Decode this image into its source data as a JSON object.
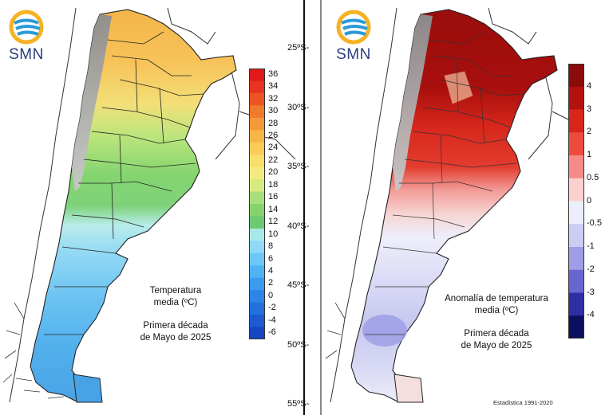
{
  "left_panel": {
    "logo_text": "SMN",
    "caption_line1": "Temperatura",
    "caption_line2": "media (ºC)",
    "caption_line3": "Primera década",
    "caption_line4": "de Mayo de 2025",
    "colorbar": {
      "labels": [
        "36",
        "34",
        "32",
        "30",
        "28",
        "26",
        "24",
        "22",
        "20",
        "18",
        "16",
        "14",
        "12",
        "10",
        "8",
        "6",
        "4",
        "2",
        "0",
        "-2",
        "-4",
        "-6"
      ],
      "colors": [
        "#e0191b",
        "#e63520",
        "#ec5424",
        "#f07a2c",
        "#f39a38",
        "#f5b547",
        "#f8cc56",
        "#fadd6a",
        "#f5ea7f",
        "#d6ea80",
        "#a8df7a",
        "#86d36e",
        "#6dca73",
        "#a9e8e8",
        "#8fd8f6",
        "#6cc6f6",
        "#4fb2f2",
        "#3a9ced",
        "#2d85e6",
        "#2470dd",
        "#1d5ad0",
        "#1646c0"
      ]
    }
  },
  "right_panel": {
    "logo_text": "SMN",
    "caption_line1": "Anomalía de temperatura",
    "caption_line2": "media (ºC)",
    "caption_line3": "Primera década",
    "caption_line4": "de Mayo de 2025",
    "footer": "Estadística 1991-2020",
    "lat_labels": [
      "25ºS-",
      "30ºS-",
      "35ºS-",
      "40ºS-",
      "45ºS-",
      "50ºS-",
      "55ºS-"
    ],
    "colorbar": {
      "labels": [
        "4",
        "3",
        "2",
        "1",
        "0.5",
        "0",
        "-0.5",
        "-1",
        "-2",
        "-3",
        "-4"
      ],
      "colors": [
        "#8b0a0a",
        "#b3120f",
        "#d8261b",
        "#ee4b3e",
        "#f58a88",
        "#fbd0ce",
        "#eceefb",
        "#cbcdf2",
        "#9e9ee6",
        "#6a66cf",
        "#2f2fa4",
        "#0a0f5e"
      ]
    }
  }
}
